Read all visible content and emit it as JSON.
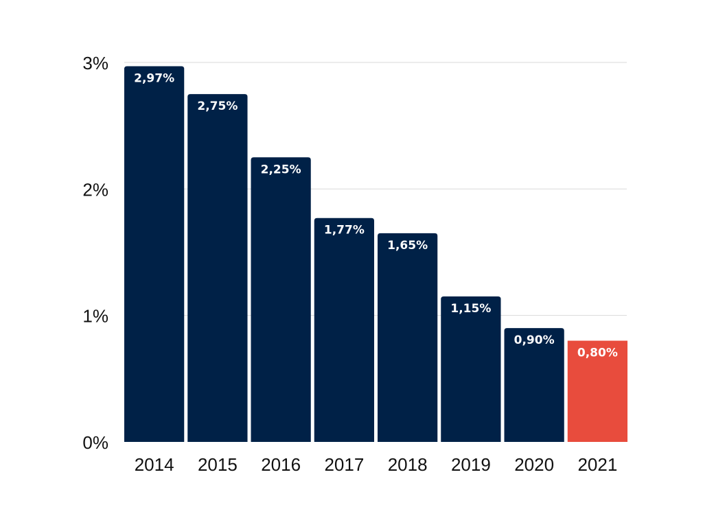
{
  "chart_data": {
    "type": "bar",
    "categories": [
      "2014",
      "2015",
      "2016",
      "2017",
      "2018",
      "2019",
      "2020",
      "2021"
    ],
    "values": [
      2.97,
      2.75,
      2.25,
      1.77,
      1.65,
      1.15,
      0.9,
      0.8
    ],
    "value_labels": [
      "2,97%",
      "2,75%",
      "2,25%",
      "1,77%",
      "1,65%",
      "1,15%",
      "0,90%",
      "0,80%"
    ],
    "title": "",
    "xlabel": "",
    "ylabel": "",
    "ylim": [
      0,
      3
    ],
    "y_ticks": [
      0,
      1,
      2,
      3
    ],
    "y_tick_labels": [
      "0%",
      "1%",
      "2%",
      "3%"
    ],
    "grid": true,
    "legend": "none",
    "colors": {
      "default_bar": "#002147",
      "highlight_bar": "#E84C3D",
      "gridline": "#d9d9d9",
      "data_label": "#ffffff"
    },
    "highlight_index": 7
  }
}
